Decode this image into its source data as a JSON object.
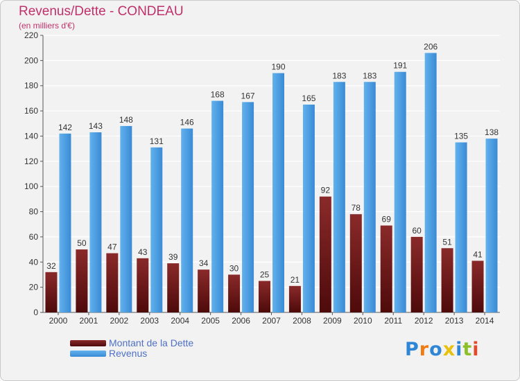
{
  "title": "Revenus/Dette - CONDEAU",
  "subtitle": "(en milliers d'€)",
  "logo": {
    "text": "Proxiti",
    "letters": [
      "P",
      "r",
      "o",
      "x",
      "i",
      "t",
      "i"
    ],
    "colors": [
      "#2f86d6",
      "#f07b13",
      "#2f86d6",
      "#e8c10c",
      "#2f86d6",
      "#8cbf2a",
      "#e14b2b"
    ]
  },
  "colors": {
    "debt": "#7a1a1a",
    "revenue": "#3a8fd8",
    "title": "#c0306a",
    "legend_text": "#4f70c6"
  },
  "chart_data": {
    "type": "bar",
    "categories": [
      "2000",
      "2001",
      "2002",
      "2003",
      "2004",
      "2005",
      "2006",
      "2007",
      "2008",
      "2009",
      "2010",
      "2011",
      "2012",
      "2013",
      "2014"
    ],
    "series": [
      {
        "name": "Montant de la Dette",
        "values": [
          32,
          50,
          47,
          43,
          39,
          34,
          30,
          25,
          21,
          92,
          78,
          69,
          60,
          51,
          41
        ]
      },
      {
        "name": "Revenus",
        "values": [
          142,
          143,
          148,
          131,
          146,
          168,
          167,
          190,
          165,
          183,
          183,
          191,
          206,
          135,
          138
        ]
      }
    ],
    "ylim": [
      0,
      220
    ],
    "yticks": [
      0,
      20,
      40,
      60,
      80,
      100,
      120,
      140,
      160,
      180,
      200,
      220
    ],
    "grid": true,
    "legend_position": "bottom-left"
  }
}
